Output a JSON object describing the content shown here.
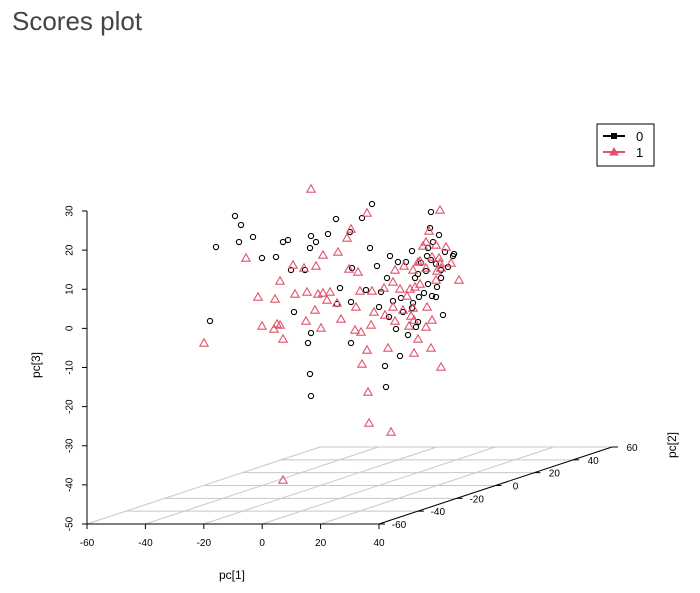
{
  "page": {
    "title": "Scores plot"
  },
  "chart_data": {
    "type": "scatter",
    "subtype": "scatter3d",
    "title": "Scores plot",
    "axes": {
      "x": {
        "label": "pc[1]",
        "ticks": [
          "-60",
          "-40",
          "-20",
          "0",
          "20",
          "40"
        ],
        "range": [
          -60,
          40
        ]
      },
      "y": {
        "label": "pc[2]",
        "ticks": [
          "-60",
          "-40",
          "-20",
          "0",
          "20",
          "40",
          "60"
        ],
        "range": [
          -60,
          60
        ]
      },
      "z": {
        "label": "pc[3]",
        "ticks": [
          "30",
          "20",
          "10",
          "0",
          "-10",
          "-20",
          "-30",
          "-40",
          "-50"
        ],
        "range": [
          -50,
          30
        ]
      }
    },
    "grid": "floor",
    "legend": {
      "placement": "top-right",
      "entries": [
        {
          "name": "0",
          "color": "#000000",
          "marker": "circle"
        },
        {
          "name": "1",
          "color": "#df536b",
          "marker": "triangle"
        }
      ]
    },
    "series": [
      {
        "name": "0",
        "color": "#000000",
        "marker": "circle",
        "points": [
          [
            216,
            247
          ],
          [
            210,
            321
          ],
          [
            235,
            216
          ],
          [
            241,
            225
          ],
          [
            239,
            242
          ],
          [
            253,
            237
          ],
          [
            262,
            258
          ],
          [
            283,
            242
          ],
          [
            276,
            257
          ],
          [
            288,
            240
          ],
          [
            291,
            270
          ],
          [
            311,
            236
          ],
          [
            316,
            242
          ],
          [
            310,
            248
          ],
          [
            305,
            270
          ],
          [
            328,
            234
          ],
          [
            336,
            219
          ],
          [
            350,
            232
          ],
          [
            352,
            268
          ],
          [
            372,
            204
          ],
          [
            362,
            218
          ],
          [
            370,
            248
          ],
          [
            377,
            266
          ],
          [
            387,
            278
          ],
          [
            381,
            292
          ],
          [
            366,
            290
          ],
          [
            351,
            302
          ],
          [
            390,
            256
          ],
          [
            398,
            262
          ],
          [
            393,
            301
          ],
          [
            389,
            317
          ],
          [
            379,
            307
          ],
          [
            412,
            251
          ],
          [
            406,
            262
          ],
          [
            415,
            278
          ],
          [
            418,
            274
          ],
          [
            428,
            248
          ],
          [
            427,
            256
          ],
          [
            431,
            260
          ],
          [
            436,
            264
          ],
          [
            445,
            252
          ],
          [
            453,
            256
          ],
          [
            441,
            270
          ],
          [
            428,
            284
          ],
          [
            419,
            297
          ],
          [
            412,
            308
          ],
          [
            418,
            322
          ],
          [
            416,
            327
          ],
          [
            408,
            335
          ],
          [
            400,
            356
          ],
          [
            385,
            366
          ],
          [
            294,
            312
          ],
          [
            308,
            343
          ],
          [
            310,
            374
          ],
          [
            311,
            396
          ],
          [
            351,
            343
          ],
          [
            401,
            298
          ],
          [
            432,
            296
          ],
          [
            413,
            303
          ],
          [
            424,
            293
          ],
          [
            437,
            287
          ],
          [
            403,
            312
          ],
          [
            396,
            329
          ],
          [
            433,
            242
          ],
          [
            439,
            235
          ],
          [
            448,
            267
          ],
          [
            426,
            271
          ],
          [
            421,
            263
          ],
          [
            443,
            315
          ],
          [
            441,
            278
          ],
          [
            436,
            297
          ],
          [
            386,
            387
          ],
          [
            340,
            288
          ],
          [
            337,
            304
          ],
          [
            311,
            333
          ],
          [
            431,
            212
          ],
          [
            430,
            228
          ],
          [
            454,
            254
          ]
        ]
      },
      {
        "name": "1",
        "color": "#df536b",
        "marker": "triangle",
        "points": [
          [
            311,
            189
          ],
          [
            367,
            213
          ],
          [
            351,
            229
          ],
          [
            347,
            238
          ],
          [
            338,
            252
          ],
          [
            323,
            255
          ],
          [
            316,
            266
          ],
          [
            304,
            268
          ],
          [
            293,
            265
          ],
          [
            280,
            281
          ],
          [
            295,
            294
          ],
          [
            275,
            299
          ],
          [
            258,
            297
          ],
          [
            277,
            324
          ],
          [
            274,
            329
          ],
          [
            262,
            326
          ],
          [
            280,
            325
          ],
          [
            283,
            339
          ],
          [
            307,
            292
          ],
          [
            318,
            294
          ],
          [
            323,
            293
          ],
          [
            330,
            292
          ],
          [
            327,
            300
          ],
          [
            337,
            303
          ],
          [
            315,
            310
          ],
          [
            306,
            321
          ],
          [
            321,
            328
          ],
          [
            341,
            319
          ],
          [
            356,
            307
          ],
          [
            360,
            291
          ],
          [
            372,
            291
          ],
          [
            355,
            330
          ],
          [
            361,
            332
          ],
          [
            374,
            312
          ],
          [
            385,
            315
          ],
          [
            371,
            325
          ],
          [
            367,
            350
          ],
          [
            388,
            348
          ],
          [
            393,
            282
          ],
          [
            400,
            289
          ],
          [
            407,
            296
          ],
          [
            403,
            310
          ],
          [
            420,
            261
          ],
          [
            426,
            268
          ],
          [
            441,
            268
          ],
          [
            451,
            263
          ],
          [
            459,
            280
          ],
          [
            436,
            280
          ],
          [
            427,
            307
          ],
          [
            414,
            320
          ],
          [
            409,
            326
          ],
          [
            418,
            339
          ],
          [
            414,
            353
          ],
          [
            441,
            367
          ],
          [
            431,
            348
          ],
          [
            426,
            327
          ],
          [
            404,
            266
          ],
          [
            413,
            270
          ],
          [
            423,
            246
          ],
          [
            429,
            231
          ],
          [
            440,
            210
          ],
          [
            246,
            258
          ],
          [
            204,
            343
          ],
          [
            368,
            392
          ],
          [
            369,
            423
          ],
          [
            391,
            432
          ],
          [
            283,
            480
          ],
          [
            426,
            242
          ],
          [
            436,
            245
          ],
          [
            446,
            247
          ],
          [
            432,
            257
          ],
          [
            437,
            271
          ],
          [
            410,
            289
          ],
          [
            439,
            258
          ],
          [
            440,
            263
          ],
          [
            418,
            262
          ],
          [
            420,
            284
          ],
          [
            384,
            288
          ],
          [
            393,
            307
          ],
          [
            395,
            321
          ],
          [
            413,
            308
          ],
          [
            415,
            287
          ],
          [
            432,
            320
          ],
          [
            411,
            316
          ],
          [
            358,
            272
          ],
          [
            349,
            269
          ],
          [
            395,
            270
          ],
          [
            362,
            364
          ]
        ]
      }
    ]
  }
}
